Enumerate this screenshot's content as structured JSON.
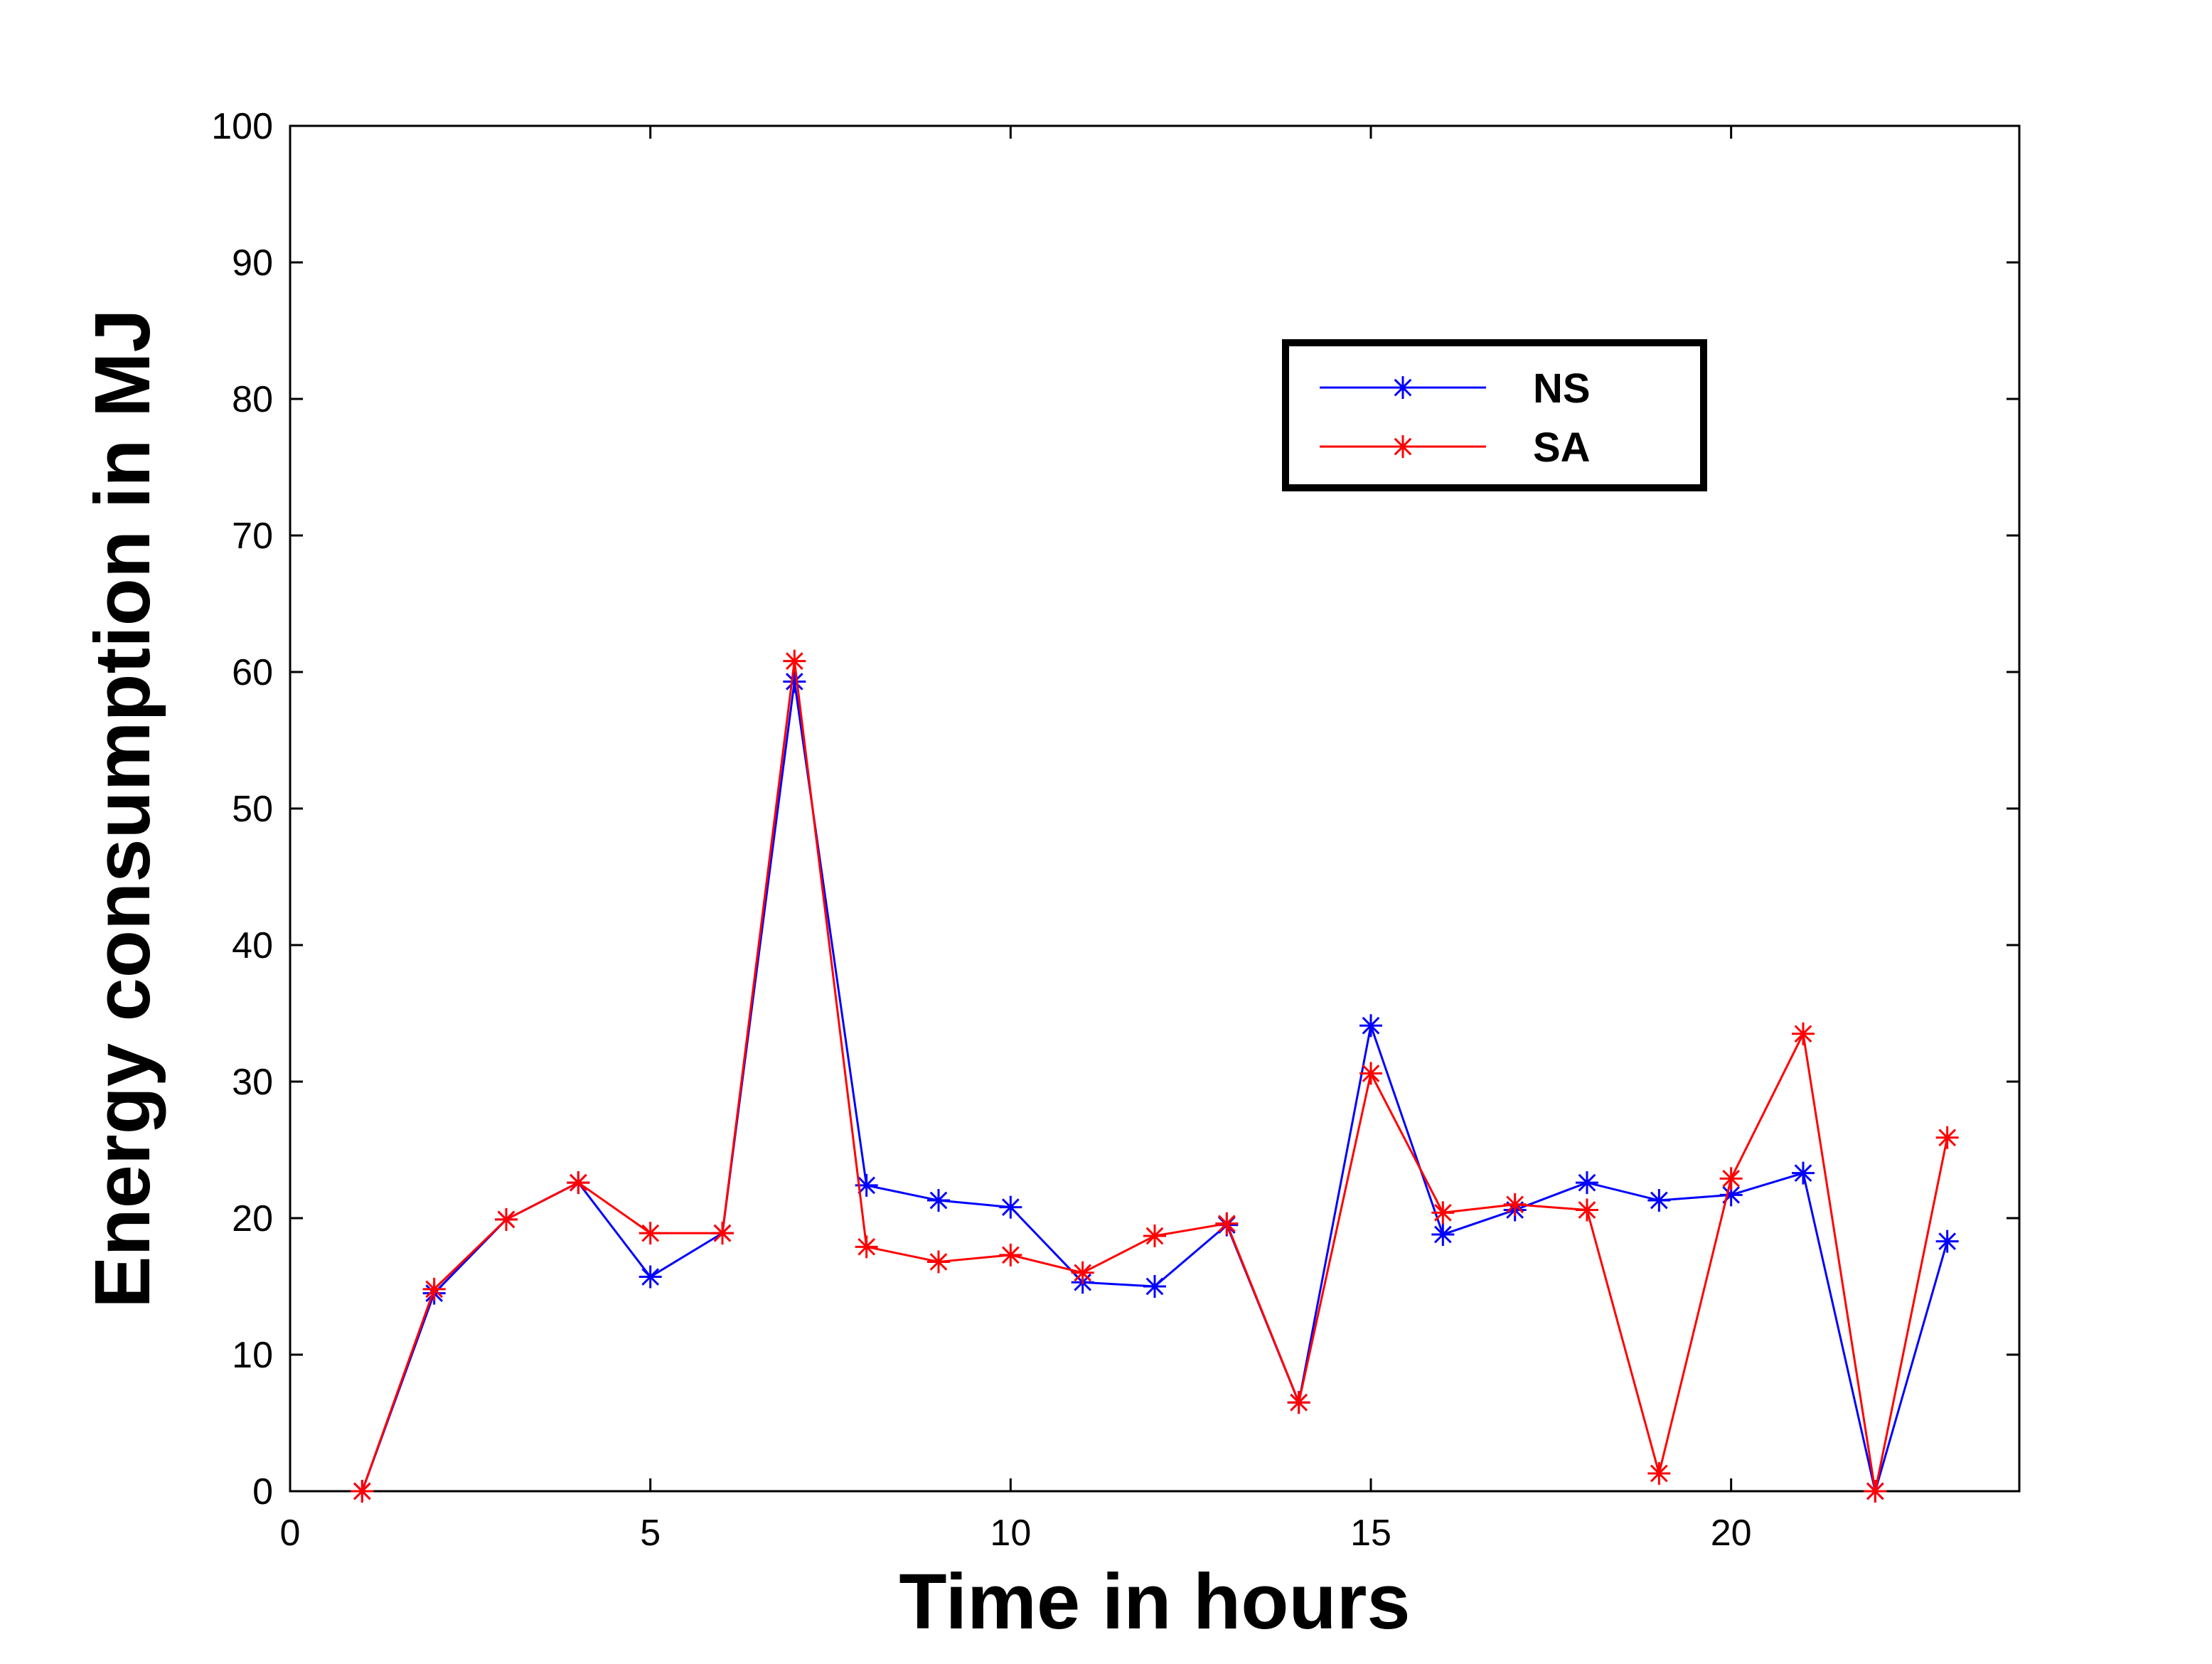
{
  "chart_data": {
    "type": "line",
    "xlabel": "Time in hours",
    "ylabel": "Energy consumption in MJ",
    "xlim": [
      0,
      24
    ],
    "ylim": [
      0,
      100
    ],
    "xticks": [
      0,
      5,
      10,
      15,
      20
    ],
    "yticks": [
      0,
      10,
      20,
      30,
      40,
      50,
      60,
      70,
      80,
      90,
      100
    ],
    "grid": false,
    "legend_position": "top-right",
    "marker": "asterisk",
    "series": [
      {
        "name": "NS",
        "color": "#0000ff",
        "x": [
          1,
          2,
          3,
          4,
          5,
          6,
          7,
          8,
          9,
          10,
          11,
          12,
          13,
          14,
          15,
          16,
          17,
          18,
          19,
          20,
          21,
          22,
          23
        ],
        "values": [
          0,
          14.5,
          19.9,
          22.6,
          15.7,
          18.9,
          59.3,
          22.4,
          21.3,
          20.8,
          15.3,
          15.0,
          19.5,
          6.5,
          34.1,
          18.8,
          20.6,
          22.6,
          21.3,
          21.7,
          23.3,
          0,
          18.3
        ]
      },
      {
        "name": "SA",
        "color": "#ff0000",
        "x": [
          1,
          2,
          3,
          4,
          5,
          6,
          7,
          8,
          9,
          10,
          11,
          12,
          13,
          14,
          15,
          16,
          17,
          18,
          19,
          20,
          21,
          22,
          23
        ],
        "values": [
          0,
          14.8,
          19.9,
          22.6,
          18.9,
          18.9,
          60.8,
          17.9,
          16.8,
          17.3,
          16.0,
          18.7,
          19.6,
          6.5,
          30.6,
          20.4,
          21.0,
          20.6,
          1.3,
          22.9,
          33.5,
          0,
          25.9
        ]
      }
    ]
  }
}
